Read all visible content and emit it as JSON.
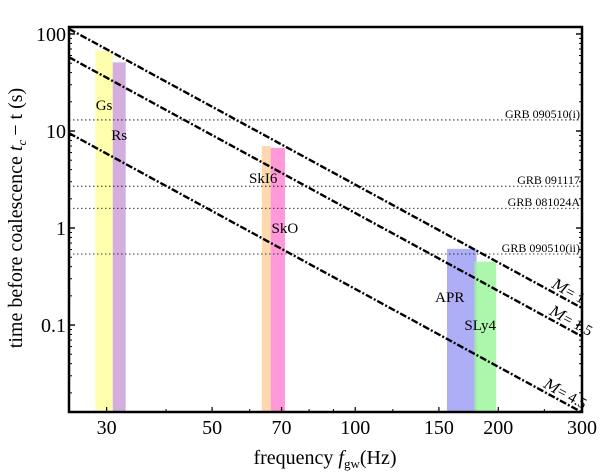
{
  "chart_data": {
    "type": "line",
    "title": "",
    "xlabel": "frequency",
    "xlabel_symbol": "f",
    "xlabel_sub": "gw",
    "xlabel_unit": "(Hz)",
    "ylabel": "time before coalescence",
    "ylabel_symbol": "t",
    "ylabel_sub": "c",
    "ylabel_rest": "− t (s)",
    "xscale": "log",
    "yscale": "log",
    "xlim": [
      25,
      300
    ],
    "ylim": [
      0.0127,
      118
    ],
    "xticks": [
      {
        "value": 30,
        "label": "30"
      },
      {
        "value": 50,
        "label": "50"
      },
      {
        "value": 70,
        "label": "70"
      },
      {
        "value": 100,
        "label": "100"
      },
      {
        "value": 150,
        "label": "150"
      },
      {
        "value": 200,
        "label": "200"
      },
      {
        "value": 300,
        "label": "300"
      }
    ],
    "yticks": [
      {
        "value": 100,
        "label": "100"
      },
      {
        "value": 10,
        "label": "10"
      },
      {
        "value": 1,
        "label": "1"
      },
      {
        "value": 0.1,
        "label": "0.1"
      }
    ],
    "series": [
      {
        "name": "M1",
        "label_prefix": "M",
        "label": "= 1",
        "t_at_25Hz": 113,
        "exponent": -2.6667
      },
      {
        "name": "M1_5",
        "label_prefix": "M",
        "label": "= 1.5",
        "t_at_25Hz": 57.6,
        "exponent": -2.6667
      },
      {
        "name": "M4_5",
        "label_prefix": "M",
        "label": "= 4.5",
        "t_at_25Hz": 9.5,
        "exponent": -2.6667
      }
    ],
    "hlines": [
      {
        "label": "GRB 090510(i)",
        "value": 13
      },
      {
        "label": "GRB 091117",
        "value": 2.7
      },
      {
        "label": "GRB 081024A",
        "value": 1.6
      },
      {
        "label": "GRB 090510(ii)",
        "value": 0.54
      }
    ],
    "bands": [
      {
        "label": "Gs",
        "f_min": 28.4,
        "f_max": 30.9,
        "t_top": 67,
        "color": "#ffff99"
      },
      {
        "label": "Rs",
        "f_min": 30.9,
        "f_max": 32.9,
        "t_top": 51,
        "color": "#c99ad6"
      },
      {
        "label": "SkI6",
        "f_min": 63.6,
        "f_max": 66.4,
        "t_top": 7.0,
        "color": "#ffd09a"
      },
      {
        "label": "SkO",
        "f_min": 66.4,
        "f_max": 71.2,
        "t_top": 6.7,
        "color": "#ff80d0"
      },
      {
        "label": "APR",
        "f_min": 156,
        "f_max": 180,
        "t_top": 0.61,
        "color": "#9a9af5"
      },
      {
        "label": "SLy4",
        "f_min": 178,
        "f_max": 198,
        "t_top": 0.45,
        "color": "#99f599"
      }
    ]
  }
}
